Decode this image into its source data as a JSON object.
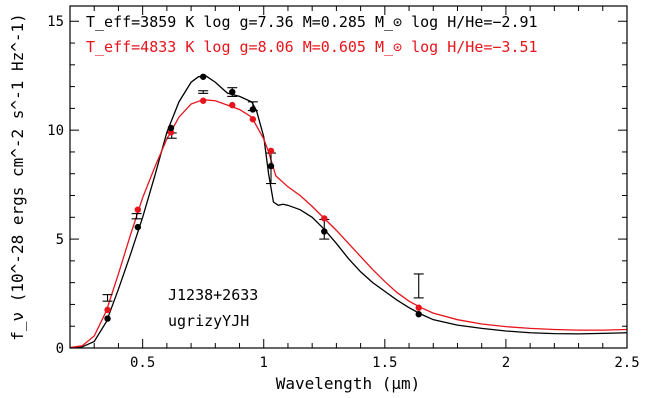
{
  "chart_data": {
    "type": "line",
    "xlabel": "Wavelength (μm)",
    "ylabel": "f_ν (10^-28 ergs cm^-2 s^-1 Hz^-1)",
    "xlim": [
      0.2,
      2.5
    ],
    "ylim": [
      0,
      15.7
    ],
    "x_ticks": [
      0.5,
      1.0,
      1.5,
      2.0,
      2.5
    ],
    "x_tick_labels": [
      "0.5",
      "1",
      "1.5",
      "2",
      "2.5"
    ],
    "y_ticks": [
      0,
      5,
      10,
      15
    ],
    "y_tick_labels": [
      "0",
      "5",
      "10",
      "15"
    ],
    "annotations": {
      "black_model": "T_eff=3859 K  log g=7.36  M=0.285 M_⊙  log H/He=−2.91",
      "red_model": "T_eff=4833 K  log g=8.06  M=0.605 M_⊙  log H/He=−3.51",
      "object": "J1238+2633",
      "filters": "ugrizyYJH"
    },
    "colors": {
      "black_model": "#000000",
      "red_model": "#e8141c",
      "observed": "#000000"
    },
    "observed": {
      "x": [
        0.355,
        0.475,
        0.62,
        0.75,
        0.87,
        0.955,
        1.03,
        1.25,
        1.64
      ],
      "y": [
        2.3,
        6.05,
        9.75,
        11.75,
        11.75,
        11.1,
        8.25,
        5.45,
        2.85
      ],
      "err": [
        0.15,
        0.12,
        0.12,
        0.06,
        0.2,
        0.2,
        0.7,
        0.45,
        0.55
      ]
    },
    "series": [
      {
        "key": "black_model",
        "curve": [
          [
            0.2,
            0.01
          ],
          [
            0.25,
            0.05
          ],
          [
            0.3,
            0.3
          ],
          [
            0.35,
            1.2
          ],
          [
            0.4,
            2.7
          ],
          [
            0.45,
            4.3
          ],
          [
            0.5,
            6.0
          ],
          [
            0.55,
            7.9
          ],
          [
            0.6,
            9.9
          ],
          [
            0.65,
            11.3
          ],
          [
            0.7,
            12.2
          ],
          [
            0.73,
            12.45
          ],
          [
            0.76,
            12.5
          ],
          [
            0.8,
            12.2
          ],
          [
            0.85,
            11.7
          ],
          [
            0.9,
            11.55
          ],
          [
            0.95,
            11.3
          ],
          [
            0.97,
            10.9
          ],
          [
            1.0,
            9.7
          ],
          [
            1.02,
            8.0
          ],
          [
            1.04,
            6.7
          ],
          [
            1.06,
            6.55
          ],
          [
            1.08,
            6.6
          ],
          [
            1.1,
            6.55
          ],
          [
            1.15,
            6.35
          ],
          [
            1.2,
            6.0
          ],
          [
            1.25,
            5.45
          ],
          [
            1.3,
            4.8
          ],
          [
            1.35,
            4.1
          ],
          [
            1.4,
            3.5
          ],
          [
            1.45,
            3.0
          ],
          [
            1.5,
            2.6
          ],
          [
            1.55,
            2.2
          ],
          [
            1.6,
            1.85
          ],
          [
            1.65,
            1.55
          ],
          [
            1.7,
            1.3
          ],
          [
            1.8,
            1.05
          ],
          [
            1.9,
            0.9
          ],
          [
            2.0,
            0.78
          ],
          [
            2.1,
            0.7
          ],
          [
            2.2,
            0.66
          ],
          [
            2.3,
            0.65
          ],
          [
            2.4,
            0.67
          ],
          [
            2.5,
            0.7
          ]
        ],
        "points_x": [
          0.355,
          0.48,
          0.617,
          0.75,
          0.87,
          0.955,
          1.03,
          1.25,
          1.64
        ],
        "points_y": [
          1.35,
          5.55,
          10.1,
          12.45,
          11.75,
          10.95,
          8.35,
          5.35,
          1.55
        ]
      },
      {
        "key": "red_model",
        "curve": [
          [
            0.2,
            0.02
          ],
          [
            0.25,
            0.1
          ],
          [
            0.3,
            0.55
          ],
          [
            0.35,
            1.7
          ],
          [
            0.4,
            3.4
          ],
          [
            0.45,
            5.2
          ],
          [
            0.5,
            6.9
          ],
          [
            0.55,
            8.3
          ],
          [
            0.6,
            9.6
          ],
          [
            0.65,
            10.6
          ],
          [
            0.7,
            11.2
          ],
          [
            0.75,
            11.4
          ],
          [
            0.8,
            11.35
          ],
          [
            0.85,
            11.15
          ],
          [
            0.9,
            10.95
          ],
          [
            0.95,
            10.6
          ],
          [
            1.0,
            9.6
          ],
          [
            1.02,
            9.0
          ],
          [
            1.05,
            7.9
          ],
          [
            1.1,
            7.4
          ],
          [
            1.15,
            7.0
          ],
          [
            1.2,
            6.5
          ],
          [
            1.25,
            5.95
          ],
          [
            1.3,
            5.4
          ],
          [
            1.35,
            4.8
          ],
          [
            1.4,
            4.2
          ],
          [
            1.45,
            3.6
          ],
          [
            1.5,
            3.05
          ],
          [
            1.55,
            2.55
          ],
          [
            1.6,
            2.15
          ],
          [
            1.65,
            1.85
          ],
          [
            1.7,
            1.6
          ],
          [
            1.8,
            1.3
          ],
          [
            1.9,
            1.1
          ],
          [
            2.0,
            0.98
          ],
          [
            2.1,
            0.9
          ],
          [
            2.2,
            0.85
          ],
          [
            2.3,
            0.82
          ],
          [
            2.4,
            0.82
          ],
          [
            2.5,
            0.85
          ]
        ],
        "points_x": [
          0.355,
          0.48,
          0.617,
          0.75,
          0.87,
          0.955,
          1.03,
          1.25,
          1.64
        ],
        "points_y": [
          1.75,
          6.35,
          9.9,
          11.35,
          11.15,
          10.5,
          9.05,
          5.95,
          1.85
        ]
      }
    ]
  }
}
